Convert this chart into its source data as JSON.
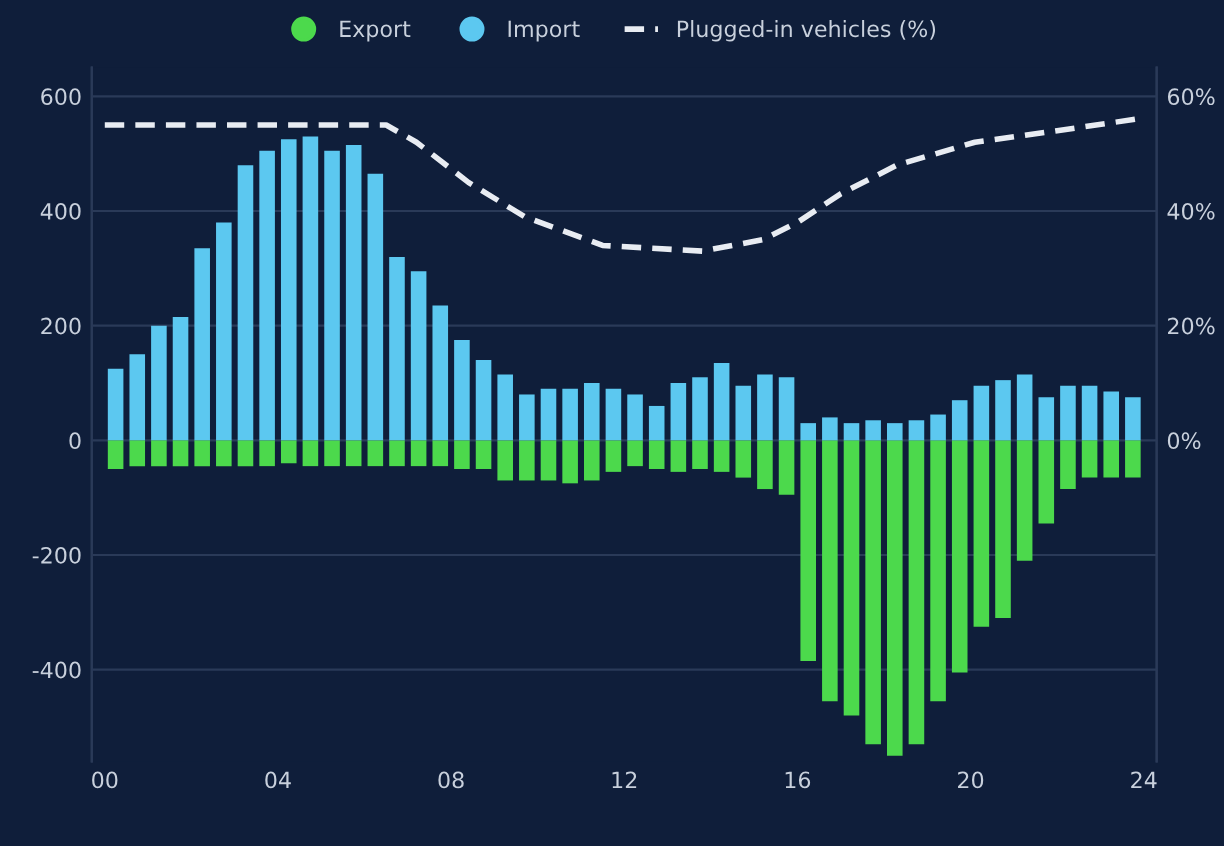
{
  "chart_data": {
    "type": "bar",
    "x": [
      0.25,
      0.75,
      1.25,
      1.75,
      2.25,
      2.75,
      3.25,
      3.75,
      4.25,
      4.75,
      5.25,
      5.75,
      6.25,
      6.75,
      7.25,
      7.75,
      8.25,
      8.75,
      9.25,
      9.75,
      10.25,
      10.75,
      11.25,
      11.75,
      12.25,
      12.75,
      13.25,
      13.75,
      14.25,
      14.75,
      15.25,
      15.75,
      16.25,
      16.75,
      17.25,
      17.75,
      18.25,
      18.75,
      19.25,
      19.75,
      20.25,
      20.75,
      21.25,
      21.75,
      22.25,
      22.75,
      23.25,
      23.75
    ],
    "series": [
      {
        "name": "Export",
        "color": "#4cd94c",
        "values": [
          -50,
          -45,
          -45,
          -45,
          -45,
          -45,
          -45,
          -45,
          -40,
          -45,
          -45,
          -45,
          -45,
          -45,
          -45,
          -45,
          -50,
          -50,
          -70,
          -70,
          -70,
          -75,
          -70,
          -55,
          -45,
          -50,
          -55,
          -50,
          -55,
          -65,
          -85,
          -95,
          -385,
          -455,
          -480,
          -530,
          -550,
          -530,
          -455,
          -405,
          -325,
          -310,
          -210,
          -145,
          -85,
          -65,
          -65,
          -65
        ]
      },
      {
        "name": "Import",
        "color": "#5cc8f0",
        "values": [
          125,
          150,
          200,
          215,
          335,
          380,
          480,
          505,
          525,
          530,
          505,
          515,
          465,
          320,
          295,
          235,
          175,
          140,
          115,
          80,
          90,
          90,
          100,
          90,
          80,
          60,
          100,
          110,
          135,
          95,
          115,
          110,
          30,
          40,
          30,
          35,
          30,
          35,
          45,
          70,
          95,
          105,
          115,
          75,
          95,
          95,
          85,
          75
        ]
      },
      {
        "name": "Plugged-in vehicles (%)",
        "type": "line",
        "axis": "y2",
        "color": "#e8ecf2",
        "line_style": "dashed",
        "marker": "none",
        "x": [
          0,
          6.5,
          7.2,
          8.4,
          9.7,
          11.5,
          13.8,
          15.2,
          16,
          17,
          18.3,
          20.1,
          22,
          23.8
        ],
        "values": [
          55,
          55,
          52,
          45,
          39,
          34,
          33,
          35,
          38,
          43,
          48,
          52,
          54,
          56
        ]
      }
    ],
    "xlim": [
      -0.3,
      24.3
    ],
    "xticks": [
      {
        "value": 0,
        "label": "00"
      },
      {
        "value": 4,
        "label": "04"
      },
      {
        "value": 8,
        "label": "08"
      },
      {
        "value": 12,
        "label": "12"
      },
      {
        "value": 16,
        "label": "16"
      },
      {
        "value": 20,
        "label": "20"
      },
      {
        "value": 24,
        "label": "24"
      }
    ],
    "ylim": [
      -560,
      650
    ],
    "yticks": [
      -400,
      -200,
      0,
      200,
      400,
      600
    ],
    "y2lim": [
      -56,
      65
    ],
    "y2ticks": [
      {
        "value": 0,
        "label": "0%"
      },
      {
        "value": 20,
        "label": "20%"
      },
      {
        "value": 40,
        "label": "40%"
      },
      {
        "value": 60,
        "label": "60%"
      }
    ],
    "grid": "y",
    "legend": "top",
    "stacked": true
  }
}
